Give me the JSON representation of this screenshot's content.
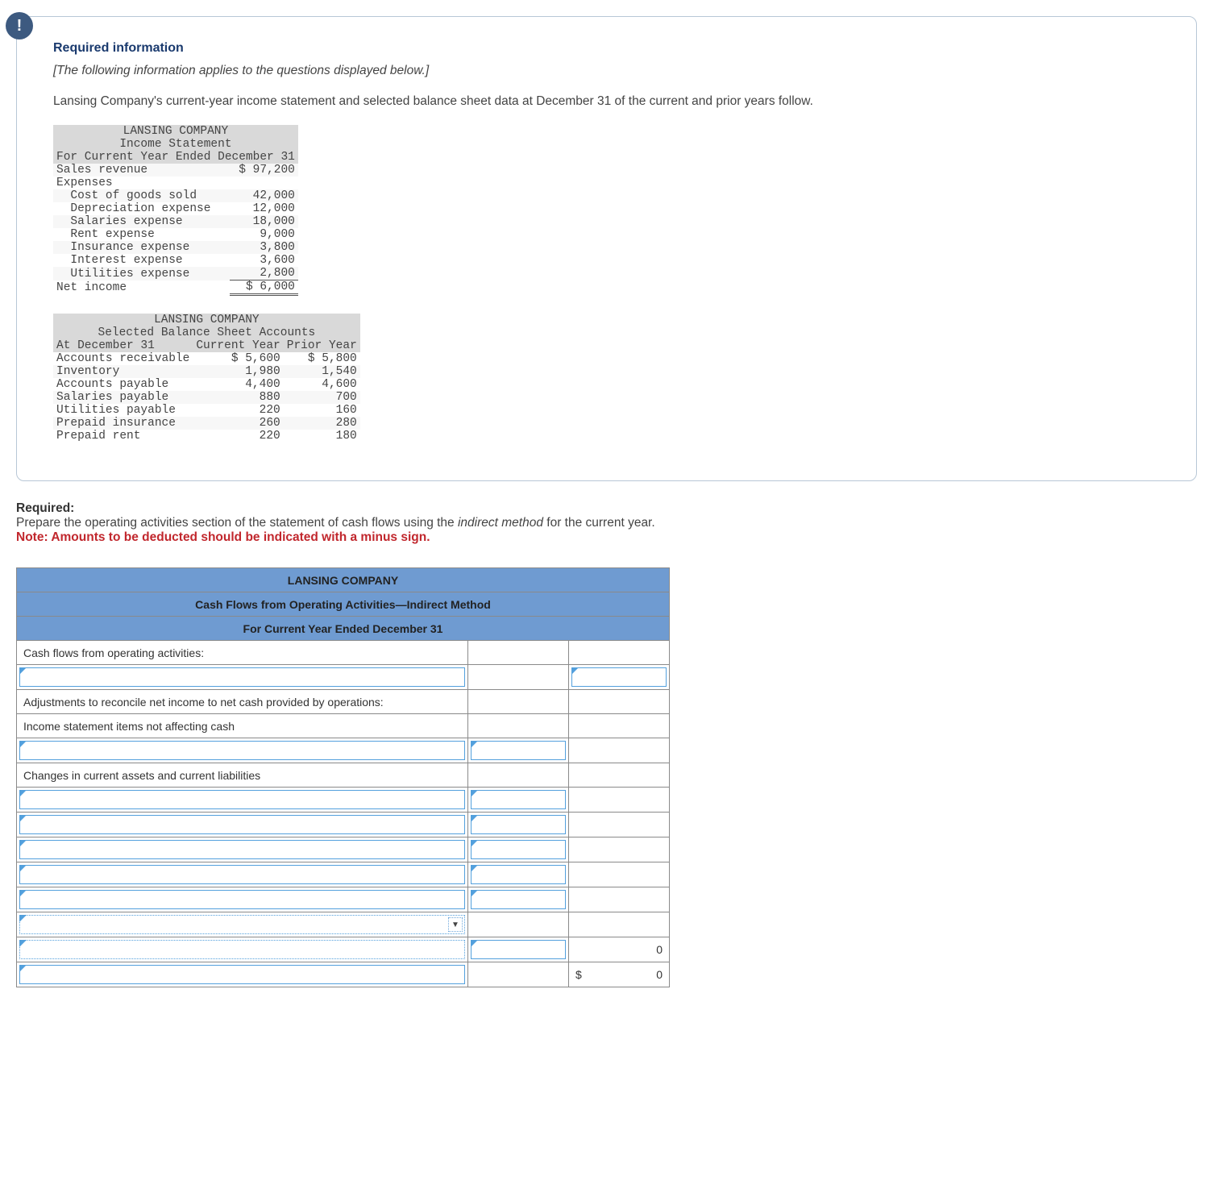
{
  "info_box": {
    "badge": "!",
    "heading": "Required information",
    "italic_note": "[The following information applies to the questions displayed below.]",
    "intro": "Lansing Company's current-year income statement and selected balance sheet data at December 31 of the current and prior years follow."
  },
  "income_statement": {
    "company": "LANSING COMPANY",
    "title": "Income Statement",
    "period": "For Current Year Ended December 31",
    "rows": [
      {
        "label": "Sales revenue",
        "value": "$ 97,200",
        "alt": true
      },
      {
        "label": "Expenses",
        "value": "",
        "alt": false
      },
      {
        "label": "  Cost of goods sold",
        "value": "42,000",
        "alt": true
      },
      {
        "label": "  Depreciation expense",
        "value": "12,000",
        "alt": false
      },
      {
        "label": "  Salaries expense",
        "value": "18,000",
        "alt": true
      },
      {
        "label": "  Rent expense",
        "value": "9,000",
        "alt": false
      },
      {
        "label": "  Insurance expense",
        "value": "3,800",
        "alt": true
      },
      {
        "label": "  Interest expense",
        "value": "3,600",
        "alt": false
      },
      {
        "label": "  Utilities expense",
        "value": "2,800",
        "alt": true,
        "underline": true
      }
    ],
    "net_income_label": "Net income",
    "net_income_value": "$ 6,000"
  },
  "balance_sheet": {
    "company": "LANSING COMPANY",
    "title": "Selected Balance Sheet Accounts",
    "col_date": "At December 31",
    "col_cur": "Current Year",
    "col_prior": "Prior Year",
    "rows": [
      {
        "label": "Accounts receivable",
        "cur": "$ 5,600",
        "prior": "$ 5,800",
        "alt": false
      },
      {
        "label": "Inventory",
        "cur": "1,980",
        "prior": "1,540",
        "alt": true
      },
      {
        "label": "Accounts payable",
        "cur": "4,400",
        "prior": "4,600",
        "alt": false
      },
      {
        "label": "Salaries payable",
        "cur": "880",
        "prior": "700",
        "alt": true
      },
      {
        "label": "Utilities payable",
        "cur": "220",
        "prior": "160",
        "alt": false
      },
      {
        "label": "Prepaid insurance",
        "cur": "260",
        "prior": "280",
        "alt": true
      },
      {
        "label": "Prepaid rent",
        "cur": "220",
        "prior": "180",
        "alt": false
      }
    ]
  },
  "requirement": {
    "req_label": "Required:",
    "text_pre": "Prepare the operating activities section of the statement of cash flows using the ",
    "method": "indirect method",
    "text_post": " for the current year.",
    "note": "Note: Amounts to be deducted should be indicated with a minus sign."
  },
  "cashflow": {
    "header1": "LANSING COMPANY",
    "header2": "Cash Flows from Operating Activities—Indirect Method",
    "header3": "For Current Year Ended December 31",
    "labels": {
      "cfoa": "Cash flows from operating activities:",
      "adjust": "Adjustments to reconcile net income to net cash provided by operations:",
      "is_items": "Income statement items not affecting cash",
      "changes": "Changes in current assets and current liabilities"
    },
    "totals": {
      "zero1": "0",
      "zero2_prefix": "$",
      "zero2": "0"
    }
  }
}
